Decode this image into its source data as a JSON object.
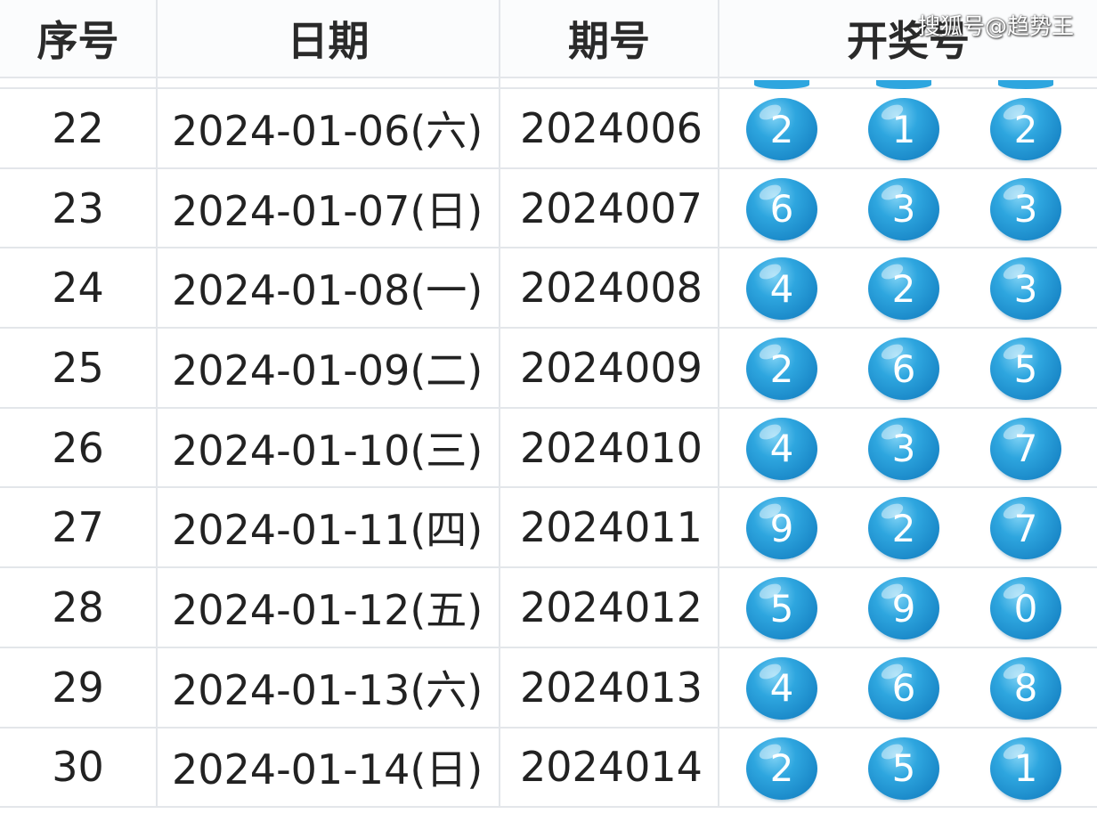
{
  "headers": [
    "序号",
    "日期",
    "期号",
    "开奖号"
  ],
  "watermark": "搜狐号@趋势王",
  "ball_color": "#2ea6df",
  "rows": [
    {
      "seq": "22",
      "date": "2024-01-06(六)",
      "issue": "2024006",
      "balls": [
        "2",
        "1",
        "2"
      ]
    },
    {
      "seq": "23",
      "date": "2024-01-07(日)",
      "issue": "2024007",
      "balls": [
        "6",
        "3",
        "3"
      ]
    },
    {
      "seq": "24",
      "date": "2024-01-08(一)",
      "issue": "2024008",
      "balls": [
        "4",
        "2",
        "3"
      ]
    },
    {
      "seq": "25",
      "date": "2024-01-09(二)",
      "issue": "2024009",
      "balls": [
        "2",
        "6",
        "5"
      ]
    },
    {
      "seq": "26",
      "date": "2024-01-10(三)",
      "issue": "2024010",
      "balls": [
        "4",
        "3",
        "7"
      ]
    },
    {
      "seq": "27",
      "date": "2024-01-11(四)",
      "issue": "2024011",
      "balls": [
        "9",
        "2",
        "7"
      ]
    },
    {
      "seq": "28",
      "date": "2024-01-12(五)",
      "issue": "2024012",
      "balls": [
        "5",
        "9",
        "0"
      ]
    },
    {
      "seq": "29",
      "date": "2024-01-13(六)",
      "issue": "2024013",
      "balls": [
        "4",
        "6",
        "8"
      ]
    },
    {
      "seq": "30",
      "date": "2024-01-14(日)",
      "issue": "2024014",
      "balls": [
        "2",
        "5",
        "1"
      ]
    }
  ]
}
